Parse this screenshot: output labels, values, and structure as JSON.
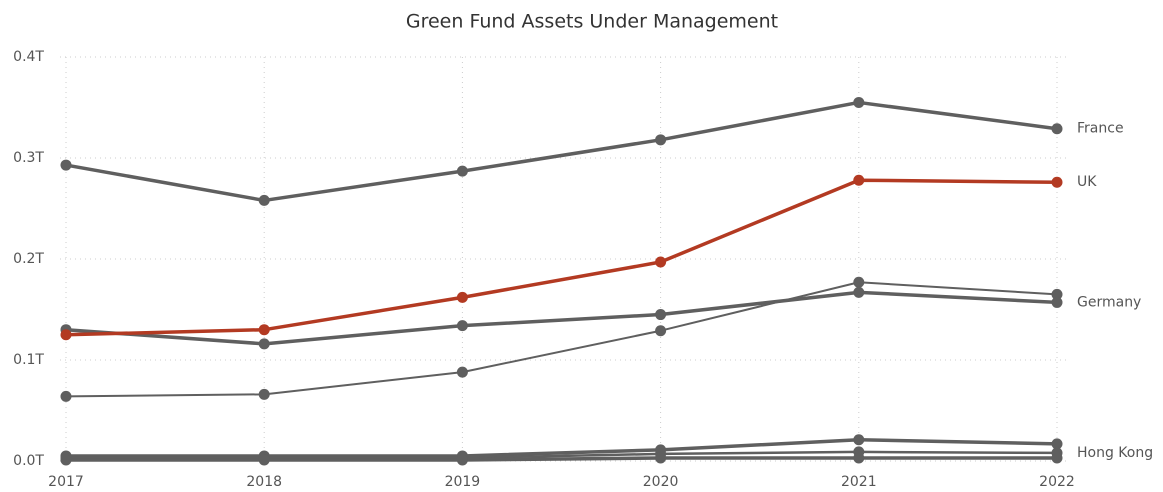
{
  "chart_data": {
    "type": "line",
    "title": "Green Fund Assets Under Management",
    "categories": [
      "2017",
      "2018",
      "2019",
      "2020",
      "2021",
      "2022"
    ],
    "ylim": [
      0,
      0.4
    ],
    "yticks": [
      {
        "value": 0,
        "label": "0.0T"
      },
      {
        "value": 0.1,
        "label": "0.1T"
      },
      {
        "value": 0.2,
        "label": "0.2T"
      },
      {
        "value": 0.3,
        "label": "0.3T"
      },
      {
        "value": 0.4,
        "label": "0.4T"
      }
    ],
    "grid": true,
    "series": [
      {
        "name": "France",
        "color": "#5f5f5f",
        "line_width": 3.5,
        "values": [
          0.293,
          0.258,
          0.287,
          0.318,
          0.355,
          0.329
        ]
      },
      {
        "color": "#5f5f5f",
        "line_width": 2,
        "values": [
          0.064,
          0.066,
          0.088,
          0.129,
          0.177,
          0.165
        ]
      },
      {
        "name": "Germany",
        "color": "#5f5f5f",
        "line_width": 3.5,
        "values": [
          0.13,
          0.116,
          0.134,
          0.145,
          0.167,
          0.157
        ]
      },
      {
        "color": "#5f5f5f",
        "line_width": 3.5,
        "values": [
          0.005,
          0.005,
          0.005,
          0.011,
          0.021,
          0.017
        ]
      },
      {
        "name": "Hong Kong",
        "color": "#5f5f5f",
        "line_width": 2.5,
        "values": [
          0.003,
          0.003,
          0.003,
          0.007,
          0.009,
          0.008
        ]
      },
      {
        "color": "#5f5f5f",
        "line_width": 3.5,
        "values": [
          0.001,
          0.001,
          0.001,
          0.003,
          0.003,
          0.003
        ]
      },
      {
        "name": "UK",
        "color": "#b33a22",
        "line_width": 3.5,
        "values": [
          0.125,
          0.13,
          0.162,
          0.197,
          0.278,
          0.276
        ]
      }
    ]
  }
}
